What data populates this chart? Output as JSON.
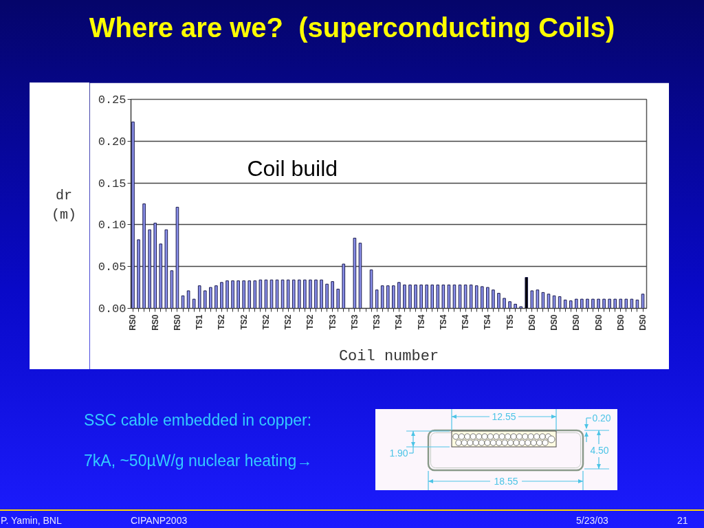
{
  "chart_data": {
    "type": "bar",
    "title": "Where are we?  (superconducting Coils)",
    "xlabel": "Coil number",
    "ylabel": "dr (m)",
    "categories": [
      "RS0",
      null,
      null,
      null,
      "RS0",
      null,
      null,
      null,
      "RS0",
      null,
      null,
      null,
      "TS1",
      null,
      null,
      null,
      "TS2",
      null,
      null,
      null,
      "TS2",
      null,
      null,
      null,
      "TS2",
      null,
      null,
      null,
      "TS2",
      null,
      null,
      null,
      "TS2",
      null,
      null,
      null,
      "TS3",
      null,
      null,
      null,
      "TS3",
      null,
      null,
      null,
      "TS3",
      null,
      null,
      null,
      "TS4",
      null,
      null,
      null,
      "TS4",
      null,
      null,
      null,
      "TS4",
      null,
      null,
      null,
      "TS4",
      null,
      null,
      null,
      "TS4",
      null,
      null,
      null,
      "TS5",
      null,
      null,
      null,
      "DS0",
      null,
      null,
      null,
      "DS0",
      null,
      null,
      null,
      "DS0",
      null,
      null,
      null,
      "DS0",
      null,
      null,
      null,
      "DS0",
      null,
      null,
      null,
      "DS0"
    ],
    "values": [
      0.223,
      0.082,
      0.125,
      0.094,
      0.102,
      0.077,
      0.094,
      0.045,
      0.121,
      0.015,
      0.021,
      0.011,
      0.027,
      0.021,
      0.025,
      0.027,
      0.031,
      0.033,
      0.033,
      0.033,
      0.033,
      0.033,
      0.033,
      0.034,
      0.034,
      0.034,
      0.034,
      0.034,
      0.034,
      0.034,
      0.034,
      0.034,
      0.034,
      0.034,
      0.034,
      0.029,
      0.032,
      0.023,
      0.053,
      null,
      0.084,
      0.078,
      null,
      0.046,
      0.022,
      0.027,
      0.027,
      0.027,
      0.031,
      0.028,
      0.028,
      0.028,
      0.028,
      0.028,
      0.028,
      0.028,
      0.028,
      0.028,
      0.028,
      0.028,
      0.028,
      0.028,
      0.027,
      0.026,
      0.025,
      0.022,
      0.018,
      0.012,
      0.008,
      0.005,
      0.002,
      0.037,
      0.021,
      0.022,
      0.019,
      0.017,
      0.015,
      0.014,
      0.01,
      0.009,
      0.011,
      0.011,
      0.011,
      0.011,
      0.011,
      0.011,
      0.011,
      0.011,
      0.011,
      0.011,
      0.011,
      0.01,
      0.017
    ],
    "colors": [
      "#8a90ea",
      "#8a90ea",
      "#8a90ea",
      "#8a90ea",
      "#8a90ea",
      "#8a90ea",
      "#8a90ea",
      "#8a90ea",
      "#8a90ea",
      "#8a90ea",
      "#8a90ea",
      "#8a90ea",
      "#8a90ea",
      "#8a90ea",
      "#8a90ea",
      "#8a90ea",
      "#8a90ea",
      "#8a90ea",
      "#8a90ea",
      "#8a90ea",
      "#8a90ea",
      "#8a90ea",
      "#8a90ea",
      "#8a90ea",
      "#8a90ea",
      "#8a90ea",
      "#8a90ea",
      "#8a90ea",
      "#8a90ea",
      "#8a90ea",
      "#8a90ea",
      "#8a90ea",
      "#8a90ea",
      "#8a90ea",
      "#8a90ea",
      "#8a90ea",
      "#8a90ea",
      "#8a90ea",
      "#8a90ea",
      "#8a90ea",
      "#8a90ea",
      "#8a90ea",
      "#8a90ea",
      "#8a90ea",
      "#8a90ea",
      "#8a90ea",
      "#8a90ea",
      "#8a90ea",
      "#8a90ea",
      "#8a90ea",
      "#8a90ea",
      "#8a90ea",
      "#8a90ea",
      "#8a90ea",
      "#8a90ea",
      "#8a90ea",
      "#8a90ea",
      "#8a90ea",
      "#8a90ea",
      "#8a90ea",
      "#8a90ea",
      "#8a90ea",
      "#8a90ea",
      "#8a90ea",
      "#8a90ea",
      "#8a90ea",
      "#8a90ea",
      "#8a90ea",
      "#8a90ea",
      "#8a90ea",
      "#8a90ea",
      "#000000",
      "#8a90ea",
      "#8a90ea",
      "#8a90ea",
      "#8a90ea",
      "#8a90ea",
      "#8a90ea",
      "#8a90ea",
      "#8a90ea",
      "#8a90ea",
      "#8a90ea",
      "#8a90ea",
      "#8a90ea",
      "#8a90ea",
      "#8a90ea",
      "#8a90ea",
      "#8a90ea",
      "#8a90ea",
      "#8a90ea",
      "#8a90ea",
      "#8a90ea",
      "#8a90ea"
    ],
    "ylim": [
      0,
      0.25
    ],
    "yticks": [
      {
        "value": 0,
        "label": "0.00"
      },
      0.05,
      {
        "value": 0.1,
        "label": "0.10"
      },
      0.15,
      {
        "value": 0.2,
        "label": "0.20"
      },
      0.25
    ],
    "grid": "y",
    "annotations": [
      "Coil build",
      "SSC cable embedded in copper:",
      "7kA, ~50µW/g nuclear heating→",
      "12.55",
      "0.20",
      "1.90",
      "4.50",
      "18.55",
      "P. Yamin, BNL",
      "CIPANP2003",
      "5/23/03",
      "21"
    ]
  }
}
